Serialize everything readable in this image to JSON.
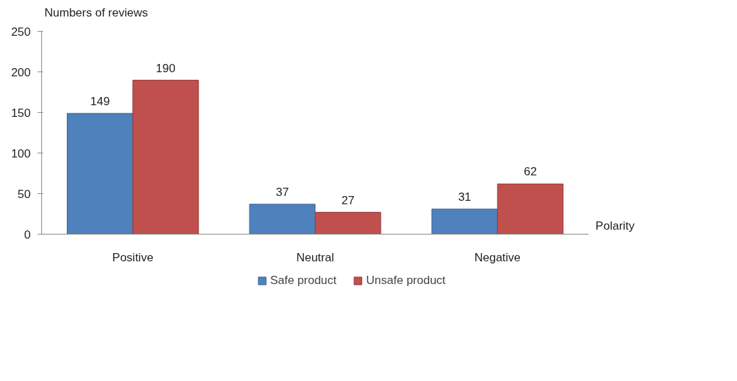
{
  "chart_data": {
    "type": "bar",
    "xlabel": "Polarity",
    "ylabel": "Numbers of reviews",
    "categories": [
      "Positive",
      "Neutral",
      "Negative"
    ],
    "series": [
      {
        "name": "Safe product",
        "color": "#4f81bd",
        "values": [
          149,
          37,
          31
        ]
      },
      {
        "name": "Unsafe product",
        "color": "#c0504d",
        "values": [
          190,
          27,
          62
        ]
      }
    ],
    "ylim": [
      0,
      250
    ],
    "yticks": [
      0,
      50,
      100,
      150,
      200,
      250
    ],
    "grid": false,
    "legend": "bottom",
    "data_labels": true
  }
}
